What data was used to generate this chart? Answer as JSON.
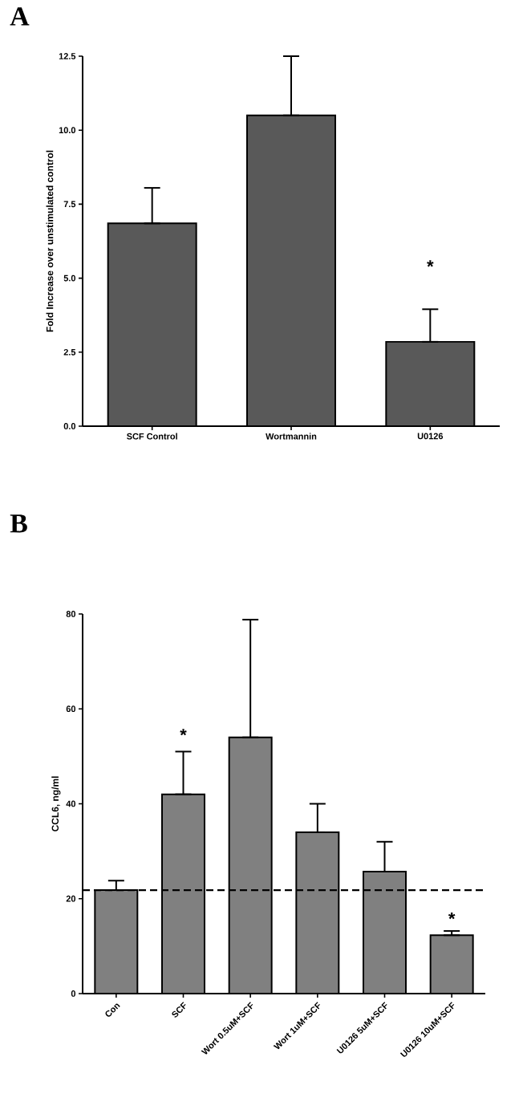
{
  "chart_data": [
    {
      "type": "bar",
      "categories": [
        "SCF Control",
        "Wortmannin",
        "U0126"
      ],
      "values": [
        6.85,
        10.5,
        2.85
      ],
      "errors": [
        [
          6.85,
          8.05
        ],
        [
          10.5,
          12.5
        ],
        [
          2.85,
          3.95
        ]
      ],
      "color": "#595959",
      "ylabel": "Fold Increase over unstimulated control",
      "ylim": [
        0,
        12.5
      ],
      "yticks": [
        {
          "value": 0,
          "label": "0.0"
        },
        {
          "value": 2.5,
          "label": "2.5"
        },
        {
          "value": 5,
          "label": "5.0"
        },
        {
          "value": 7.5,
          "label": "7.5"
        },
        {
          "value": 10,
          "label": "10.0"
        },
        {
          "value": 12.5,
          "label": "12.5"
        }
      ],
      "annotations": [
        "A",
        "*"
      ]
    },
    {
      "type": "bar",
      "categories": [
        "Con",
        "SCF",
        "Wort 0.5uM+SCF",
        "Wort 1uM+SCF",
        "U0126 5uM+SCF",
        "U0126 10uM+SCF"
      ],
      "values": [
        21.8,
        42,
        54,
        34,
        25.7,
        12.3
      ],
      "errors": [
        [
          21.8,
          23.8
        ],
        [
          42,
          51
        ],
        [
          54,
          78.8
        ],
        [
          34,
          40
        ],
        [
          25.7,
          32
        ],
        [
          12.3,
          13.2
        ]
      ],
      "color": "#808080",
      "ylabel": "CCL6, ng/ml",
      "ylim": [
        0,
        80
      ],
      "yticks": [
        0,
        20,
        40,
        60,
        80
      ],
      "ref_lines": [
        {
          "axis": "y",
          "value": 21.8,
          "line_style": "dashed",
          "color": "#000000"
        }
      ],
      "annotations": [
        "B",
        "*",
        "*"
      ]
    }
  ]
}
